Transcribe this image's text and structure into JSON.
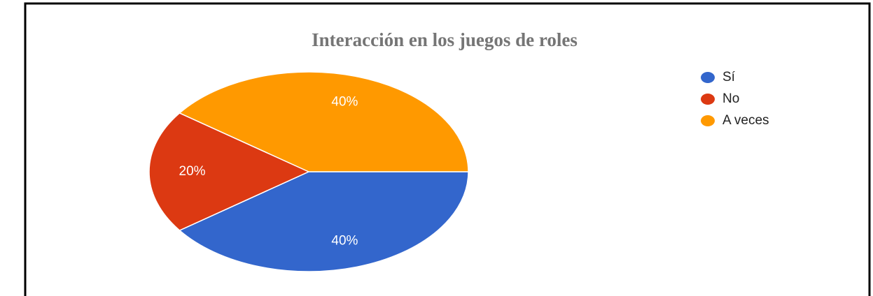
{
  "chart_data": {
    "type": "pie",
    "title": "Interacción en los juegos de roles",
    "categories": [
      "Sí",
      "No",
      "A veces"
    ],
    "values": [
      40,
      20,
      40
    ],
    "value_labels": [
      "40%",
      "20%",
      "40%"
    ],
    "colors": [
      "#3366cc",
      "#dc3912",
      "#ff9900"
    ],
    "legend": "right"
  }
}
